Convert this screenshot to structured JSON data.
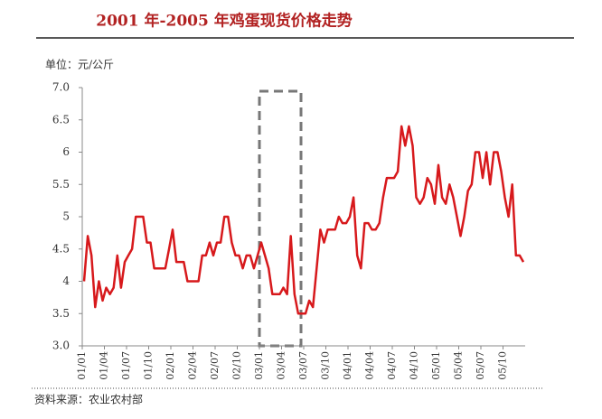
{
  "chart_data": {
    "type": "line",
    "title": "2001 年-2005 年鸡蛋现货价格走势",
    "y_label": "单位：元/公斤",
    "source": "资料来源：农业农村部",
    "color": "#d7191c",
    "categories": [
      "01/01",
      null,
      null,
      null,
      null,
      null,
      "01/04",
      null,
      null,
      null,
      null,
      null,
      "01/07",
      null,
      null,
      null,
      null,
      null,
      "01/10",
      null,
      null,
      null,
      null,
      null,
      "02/01",
      null,
      null,
      null,
      null,
      null,
      "02/04",
      null,
      null,
      null,
      null,
      null,
      "02/07",
      null,
      null,
      null,
      null,
      null,
      "02/10",
      null,
      null,
      null,
      null,
      null,
      "03/01",
      null,
      null,
      null,
      null,
      null,
      "03/04",
      null,
      null,
      null,
      null,
      null,
      "03/07",
      null,
      null,
      null,
      null,
      null,
      "03/10",
      null,
      null,
      null,
      null,
      null,
      "04/01",
      null,
      null,
      null,
      null,
      null,
      "04/04",
      null,
      null,
      null,
      null,
      null,
      "04/07",
      null,
      null,
      null,
      null,
      null,
      "04/10",
      null,
      null,
      null,
      null,
      null,
      "05/01",
      null,
      null,
      null,
      null,
      null,
      "05/04",
      null,
      null,
      null,
      null,
      null,
      "05/07",
      null,
      null,
      null,
      null,
      null,
      "05/10",
      null,
      null,
      null,
      null,
      null
    ],
    "values": [
      4.0,
      4.7,
      4.4,
      3.6,
      4.0,
      3.7,
      3.9,
      3.8,
      3.9,
      4.4,
      3.9,
      4.3,
      4.4,
      4.5,
      5.0,
      5.0,
      5.0,
      4.6,
      4.6,
      4.2,
      4.2,
      4.2,
      4.2,
      4.5,
      4.8,
      4.3,
      4.3,
      4.3,
      4.0,
      4.0,
      4.0,
      4.0,
      4.4,
      4.4,
      4.6,
      4.4,
      4.6,
      4.6,
      5.0,
      5.0,
      4.6,
      4.4,
      4.4,
      4.2,
      4.4,
      4.4,
      4.2,
      4.4,
      4.6,
      4.4,
      4.2,
      3.8,
      3.8,
      3.8,
      3.9,
      3.8,
      4.7,
      3.8,
      3.5,
      3.5,
      3.5,
      3.7,
      3.6,
      4.2,
      4.8,
      4.6,
      4.8,
      4.8,
      4.8,
      5.0,
      4.9,
      4.9,
      5.0,
      5.3,
      4.4,
      4.2,
      4.9,
      4.9,
      4.8,
      4.8,
      4.9,
      5.3,
      5.6,
      5.6,
      5.6,
      5.7,
      6.4,
      6.1,
      6.4,
      6.1,
      5.3,
      5.2,
      5.3,
      5.6,
      5.5,
      5.2,
      5.8,
      5.3,
      5.2,
      5.5,
      5.3,
      5.0,
      4.7,
      5.0,
      5.4,
      5.5,
      6.0,
      6.0,
      5.6,
      6.0,
      5.5,
      6.0,
      6.0,
      5.7,
      5.3,
      5.0,
      5.5,
      4.4,
      4.4,
      4.3
    ],
    "ylim": [
      3.0,
      7.0
    ],
    "yticks": [
      {
        "value": 3,
        "label": "3.0"
      },
      3.5,
      4,
      4.5,
      5,
      5.5,
      6,
      6.5,
      {
        "value": 7,
        "label": "7.0"
      }
    ]
  }
}
